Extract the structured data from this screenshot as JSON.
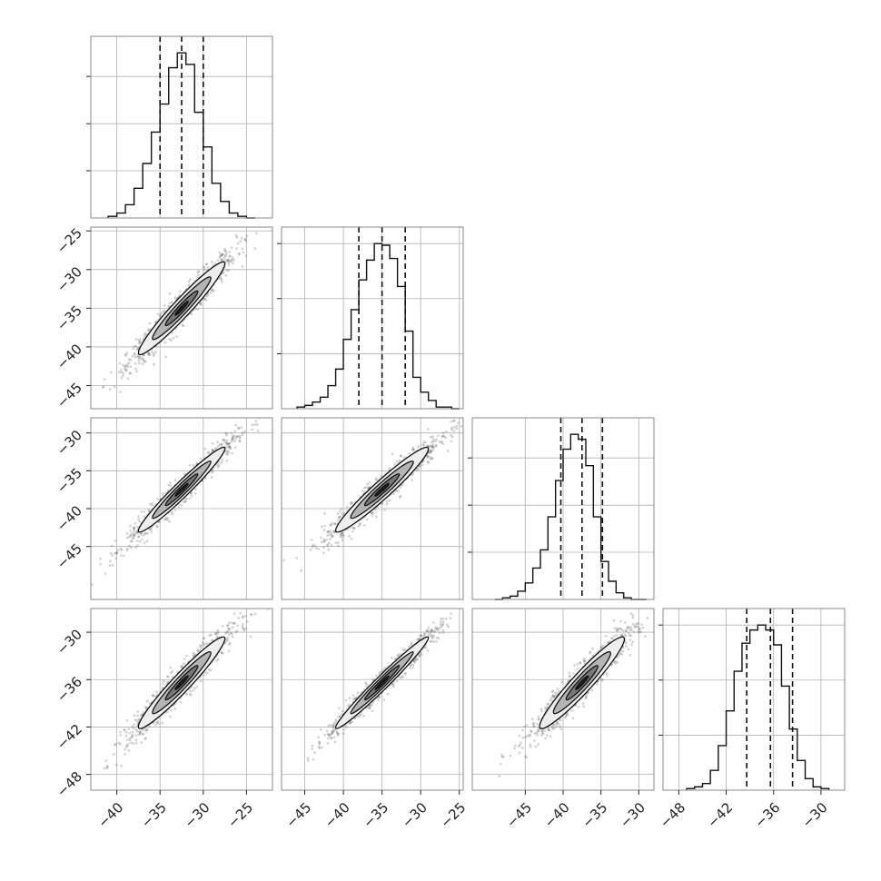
{
  "chart_data": {
    "type": "corner",
    "grid": true,
    "parameters": [
      {
        "id": "p0",
        "range": [
          -43,
          -22
        ],
        "ticks": [
          -40,
          -35,
          -30,
          -25
        ],
        "tick_labels": [
          "−40",
          "−35",
          "−30",
          "−25"
        ],
        "quantiles": [
          -35,
          -32.5,
          -30
        ]
      },
      {
        "id": "p1",
        "range": [
          -48,
          -24.5
        ],
        "ticks": [
          -45,
          -40,
          -35,
          -30,
          -25
        ],
        "tick_labels": [
          "−45",
          "−40",
          "−35",
          "−30",
          "−25"
        ],
        "quantiles": [
          -38,
          -35,
          -32
        ]
      },
      {
        "id": "p2",
        "range": [
          -52,
          -28
        ],
        "ticks": [
          -45,
          -40,
          -35,
          -30
        ],
        "tick_labels": [
          "−45",
          "−40",
          "−35",
          "−30"
        ],
        "quantiles": [
          -40.3,
          -37.5,
          -34.8
        ]
      },
      {
        "id": "p3",
        "range": [
          -50,
          -27
        ],
        "ticks": [
          -48,
          -42,
          -36,
          -30
        ],
        "tick_labels": [
          "−48",
          "−42",
          "−36",
          "−30"
        ],
        "quantiles": [
          -39.4,
          -36.4,
          -33.6
        ]
      }
    ],
    "diagonal_hist_y_ticks": [
      [
        0.286,
        0.571,
        0.857
      ],
      [
        0.333,
        0.667,
        1.0
      ],
      [
        0.286,
        0.571,
        0.857
      ],
      [
        0.333,
        0.667,
        1.0
      ]
    ],
    "histograms": [
      {
        "bins": [
          -41,
          -40,
          -39,
          -38,
          -37,
          -36,
          -35,
          -34,
          -33,
          -32,
          -31,
          -30,
          -29,
          -28,
          -27,
          -26,
          -25,
          -24
        ],
        "counts": [
          0.01,
          0.03,
          0.08,
          0.18,
          0.33,
          0.52,
          0.69,
          0.91,
          1.0,
          0.93,
          0.64,
          0.43,
          0.21,
          0.1,
          0.03,
          0.01,
          0.0
        ]
      },
      {
        "bins": [
          -46,
          -45,
          -44,
          -43,
          -42,
          -41,
          -40,
          -39,
          -38,
          -37,
          -36,
          -35,
          -34,
          -33,
          -32,
          -31,
          -30,
          -29,
          -28,
          -27,
          -26,
          -25
        ],
        "counts": [
          0.01,
          0.02,
          0.04,
          0.07,
          0.14,
          0.24,
          0.42,
          0.6,
          0.78,
          0.9,
          1.0,
          0.99,
          0.91,
          0.74,
          0.47,
          0.19,
          0.1,
          0.05,
          0.01,
          0.01,
          0.0
        ]
      },
      {
        "bins": [
          -49,
          -48,
          -47,
          -46,
          -45,
          -44,
          -43,
          -42,
          -41,
          -40,
          -39,
          -38,
          -37,
          -36,
          -35,
          -34,
          -33,
          -32,
          -31,
          -30,
          -29
        ],
        "counts": [
          0.0,
          0.01,
          0.02,
          0.05,
          0.1,
          0.19,
          0.3,
          0.5,
          0.72,
          0.91,
          1.0,
          0.97,
          0.81,
          0.5,
          0.23,
          0.11,
          0.04,
          0.01,
          0.0,
          0.0
        ]
      },
      {
        "bins": [
          -47,
          -46,
          -45,
          -44,
          -43,
          -42,
          -41,
          -40,
          -39,
          -38,
          -37,
          -36,
          -35,
          -34,
          -33,
          -32,
          -31,
          -30,
          -29
        ],
        "counts": [
          0.01,
          0.02,
          0.04,
          0.12,
          0.27,
          0.48,
          0.72,
          0.89,
          0.97,
          1.0,
          0.97,
          0.88,
          0.63,
          0.37,
          0.18,
          0.07,
          0.02,
          0.01
        ]
      }
    ],
    "pairs": [
      {
        "x": "p0",
        "y": "p1",
        "x_mean": -32.5,
        "y_mean": -35,
        "x_sd": 2.5,
        "y_sd": 3,
        "corr": 0.96
      },
      {
        "x": "p0",
        "y": "p2",
        "x_mean": -32.5,
        "y_mean": -37.5,
        "x_sd": 2.5,
        "y_sd": 2.8,
        "corr": 0.97
      },
      {
        "x": "p1",
        "y": "p2",
        "x_mean": -35,
        "y_mean": -37.5,
        "x_sd": 3,
        "y_sd": 2.8,
        "corr": 0.96
      },
      {
        "x": "p0",
        "y": "p3",
        "x_mean": -32.5,
        "y_mean": -36.4,
        "x_sd": 2.5,
        "y_sd": 2.9,
        "corr": 0.96
      },
      {
        "x": "p1",
        "y": "p3",
        "x_mean": -35,
        "y_mean": -36.4,
        "x_sd": 3,
        "y_sd": 2.9,
        "corr": 0.98
      },
      {
        "x": "p2",
        "y": "p3",
        "x_mean": -37.5,
        "y_mean": -36.4,
        "x_sd": 2.8,
        "y_sd": 2.9,
        "corr": 0.95
      }
    ]
  }
}
